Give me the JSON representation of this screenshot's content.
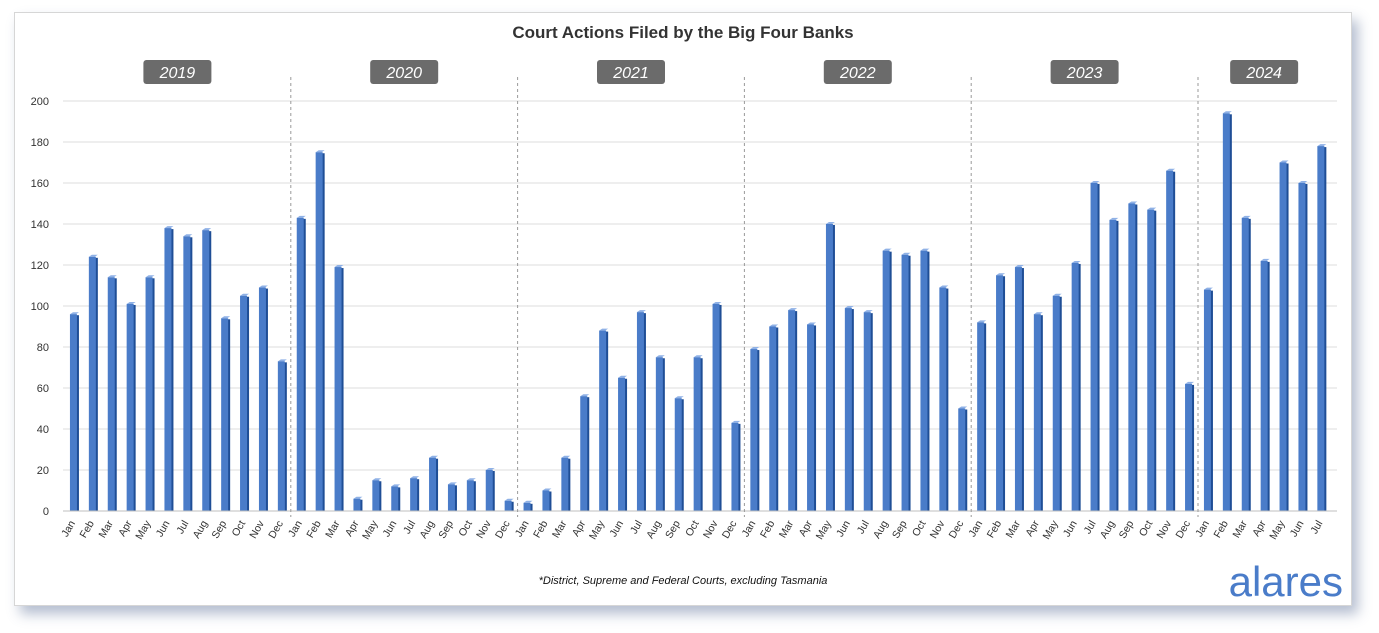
{
  "chart_data": {
    "type": "bar",
    "title": "Court Actions Filed by the Big Four Banks",
    "footnote": "*District, Supreme and Federal Courts, excluding Tasmania",
    "ylim": [
      0,
      200
    ],
    "yticks": [
      0,
      20,
      40,
      60,
      80,
      100,
      120,
      140,
      160,
      180,
      200
    ],
    "grid": true,
    "bar_color": "#4a7cc9",
    "groups": [
      {
        "year": "2019",
        "months": [
          "Jan",
          "Feb",
          "Mar",
          "Apr",
          "May",
          "Jun",
          "Jul",
          "Aug",
          "Sep",
          "Oct",
          "Nov",
          "Dec"
        ],
        "values": [
          96,
          124,
          114,
          101,
          114,
          138,
          134,
          137,
          94,
          105,
          109,
          73
        ]
      },
      {
        "year": "2020",
        "months": [
          "Jan",
          "Feb",
          "Mar",
          "Apr",
          "May",
          "Jun",
          "Jul",
          "Aug",
          "Sep",
          "Oct",
          "Nov",
          "Dec"
        ],
        "values": [
          143,
          175,
          119,
          6,
          15,
          12,
          16,
          26,
          13,
          15,
          20,
          5
        ]
      },
      {
        "year": "2021",
        "months": [
          "Jan",
          "Feb",
          "Mar",
          "Apr",
          "May",
          "Jun",
          "Jul",
          "Aug",
          "Sep",
          "Oct",
          "Nov",
          "Dec"
        ],
        "values": [
          4,
          10,
          26,
          56,
          88,
          65,
          97,
          75,
          55,
          75,
          101,
          43
        ]
      },
      {
        "year": "2022",
        "months": [
          "Jan",
          "Feb",
          "Mar",
          "Apr",
          "May",
          "Jun",
          "Jul",
          "Aug",
          "Sep",
          "Oct",
          "Nov",
          "Dec"
        ],
        "values": [
          79,
          90,
          98,
          91,
          140,
          99,
          97,
          127,
          125,
          127,
          109,
          50
        ]
      },
      {
        "year": "2023",
        "months": [
          "Jan",
          "Feb",
          "Mar",
          "Apr",
          "May",
          "Jun",
          "Jul",
          "Aug",
          "Sep",
          "Oct",
          "Nov",
          "Dec"
        ],
        "values": [
          92,
          115,
          119,
          96,
          105,
          121,
          160,
          142,
          150,
          147,
          166,
          62
        ]
      },
      {
        "year": "2024",
        "months": [
          "Jan",
          "Feb",
          "Mar",
          "Apr",
          "May",
          "Jun",
          "Jul"
        ],
        "values": [
          108,
          194,
          143,
          122,
          170,
          160,
          178
        ]
      }
    ]
  },
  "branding": {
    "logo_text": "alares",
    "logo_color": "#4a7cc9"
  }
}
